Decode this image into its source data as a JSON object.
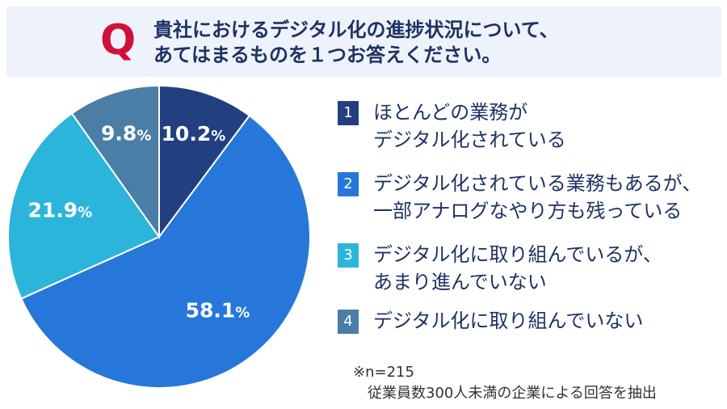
{
  "question": {
    "mark": "Q",
    "lines": [
      "貴社におけるデジタル化の進捗状況について、",
      "あてはまるものを１つお答えください。"
    ]
  },
  "chart_data": {
    "type": "pie",
    "start": "12 o'clock",
    "direction": "clockwise",
    "slices": [
      {
        "index": "1",
        "value": 10.2,
        "value_label": "10.2",
        "unit": "%",
        "color": "#22407f",
        "legend_lines": [
          "ほとんどの業務が",
          "デジタル化されている"
        ]
      },
      {
        "index": "2",
        "value": 58.1,
        "value_label": "58.1",
        "unit": "%",
        "color": "#2677d9",
        "legend_lines": [
          "デジタル化されている業務もあるが、",
          "一部アナログなやり方も残っている"
        ]
      },
      {
        "index": "3",
        "value": 21.9,
        "value_label": "21.9",
        "unit": "%",
        "color": "#2cb5da",
        "legend_lines": [
          "デジタル化に取り組んでいるが、",
          "あまり進んでいない"
        ]
      },
      {
        "index": "4",
        "value": 9.8,
        "value_label": "9.8",
        "unit": "%",
        "color": "#4a7ea6",
        "legend_lines": [
          "デジタル化に取り組んでいない"
        ]
      }
    ]
  },
  "footnote": {
    "line1": "※n=215",
    "line2": "従業員数300人未満の企業による回答を抽出"
  }
}
